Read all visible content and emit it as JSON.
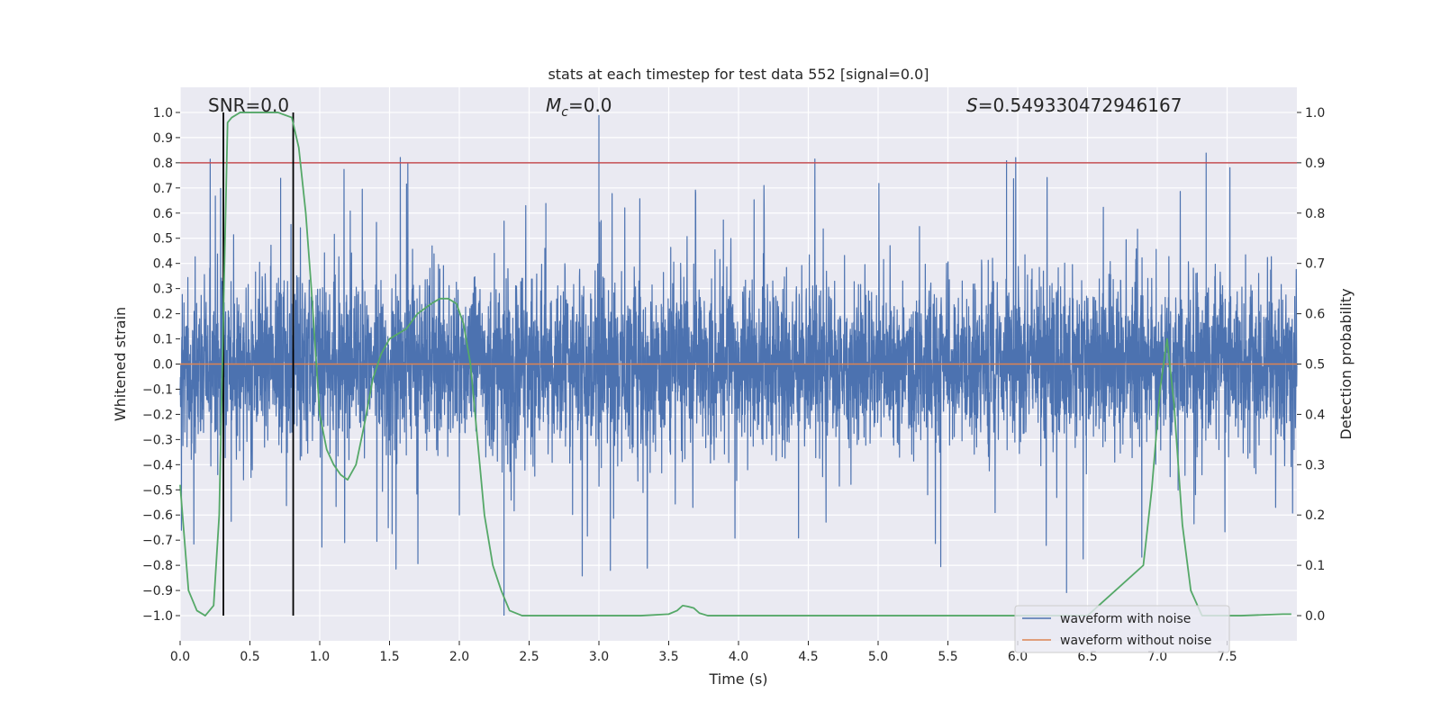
{
  "chart_data": {
    "type": "line",
    "title": "stats at each timestep for test data 552 [signal=0.0]",
    "xlabel": "Time (s)",
    "ylabel_left": "Whitened strain",
    "ylabel_right": "Detection probability",
    "xlim": [
      0.0,
      8.0
    ],
    "ylim_left": [
      -1.1,
      1.1
    ],
    "ylim_right": [
      -0.05,
      1.05
    ],
    "x_ticks": [
      0.0,
      0.5,
      1.0,
      1.5,
      2.0,
      2.5,
      3.0,
      3.5,
      4.0,
      4.5,
      5.0,
      5.5,
      6.0,
      6.5,
      7.0,
      7.5
    ],
    "x_tick_labels": [
      "0.0",
      "0.5",
      "1.0",
      "1.5",
      "2.0",
      "2.5",
      "3.0",
      "3.5",
      "4.0",
      "4.5",
      "5.0",
      "5.5",
      "6.0",
      "6.5",
      "7.0",
      "7.5"
    ],
    "y_left_ticks": [
      1.0,
      0.9,
      0.8,
      0.7,
      0.6,
      0.5,
      0.4,
      0.3,
      0.2,
      0.1,
      0.0,
      -0.1,
      -0.2,
      -0.3,
      -0.4,
      -0.5,
      -0.6,
      -0.7,
      -0.8,
      -0.9,
      -1.0
    ],
    "y_left_tick_labels": [
      "1.0",
      "0.9",
      "0.8",
      "0.7",
      "0.6",
      "0.5",
      "0.4",
      "0.3",
      "0.2",
      "0.1",
      "0.0",
      "−0.1",
      "−0.2",
      "−0.3",
      "−0.4",
      "−0.5",
      "−0.6",
      "−0.7",
      "−0.8",
      "−0.9",
      "−1.0"
    ],
    "y_right_ticks": [
      1.0,
      0.9,
      0.8,
      0.7,
      0.6,
      0.5,
      0.4,
      0.3,
      0.2,
      0.1,
      0.0
    ],
    "y_right_tick_labels": [
      "1.0",
      "0.9",
      "0.8",
      "0.7",
      "0.6",
      "0.5",
      "0.4",
      "0.3",
      "0.2",
      "0.1",
      "0.0"
    ],
    "grid": true,
    "legend_position": "lower-right",
    "annotations": {
      "snr": "SNR=0.0",
      "mc_symbol": "M",
      "mc_subscript": "c",
      "mc_value": "=0.0",
      "s_symbol": "S",
      "s_value": "=0.549330472946167"
    },
    "threshold_line": {
      "y": 0.8,
      "color": "#c44e52"
    },
    "vertical_lines": [
      0.31,
      0.81
    ],
    "colors": {
      "noise": "#4c72b0",
      "clean": "#dd8452",
      "probability": "#55a868",
      "vline": "#000000",
      "background": "#eaeaf2",
      "grid": "#ffffff"
    },
    "series": [
      {
        "name": "waveform with noise",
        "style": "dense noise, sample rate ~2048 Hz",
        "typical_range": [
          -0.5,
          0.5
        ],
        "max": 0.99,
        "min": -1.0
      },
      {
        "name": "waveform without noise",
        "x": [
          0.0,
          8.0
        ],
        "y": [
          0.0,
          0.0
        ]
      },
      {
        "name": "detection probability",
        "axis": "right",
        "x": [
          0.0,
          0.06,
          0.12,
          0.18,
          0.24,
          0.28,
          0.31,
          0.34,
          0.37,
          0.43,
          0.5,
          0.6,
          0.7,
          0.75,
          0.8,
          0.85,
          0.9,
          0.94,
          1.0,
          1.05,
          1.1,
          1.15,
          1.2,
          1.26,
          1.32,
          1.38,
          1.44,
          1.5,
          1.56,
          1.62,
          1.7,
          1.8,
          1.86,
          1.92,
          1.98,
          2.03,
          2.08,
          2.13,
          2.18,
          2.24,
          2.3,
          2.36,
          2.45,
          2.6,
          3.0,
          3.3,
          3.5,
          3.56,
          3.6,
          3.64,
          3.68,
          3.72,
          3.78,
          3.9,
          4.5,
          5.5,
          6.5,
          6.9,
          6.96,
          7.02,
          7.07,
          7.12,
          7.18,
          7.24,
          7.32,
          7.6,
          7.9,
          7.96
        ],
        "y": [
          0.26,
          0.05,
          0.01,
          0.0,
          0.02,
          0.2,
          0.6,
          0.98,
          0.99,
          1.0,
          1.0,
          1.0,
          1.0,
          0.995,
          0.99,
          0.93,
          0.8,
          0.65,
          0.4,
          0.33,
          0.3,
          0.28,
          0.27,
          0.3,
          0.38,
          0.47,
          0.52,
          0.55,
          0.56,
          0.57,
          0.6,
          0.62,
          0.63,
          0.63,
          0.62,
          0.58,
          0.5,
          0.35,
          0.2,
          0.1,
          0.05,
          0.01,
          0.0,
          0.0,
          0.0,
          0.0,
          0.003,
          0.01,
          0.02,
          0.018,
          0.015,
          0.005,
          0.0,
          0.0,
          0.0,
          0.0,
          0.0,
          0.1,
          0.25,
          0.45,
          0.55,
          0.42,
          0.18,
          0.05,
          0.0,
          0.0,
          0.003,
          0.003
        ]
      }
    ],
    "legend_entries": [
      "waveform with noise",
      "waveform without noise"
    ]
  }
}
